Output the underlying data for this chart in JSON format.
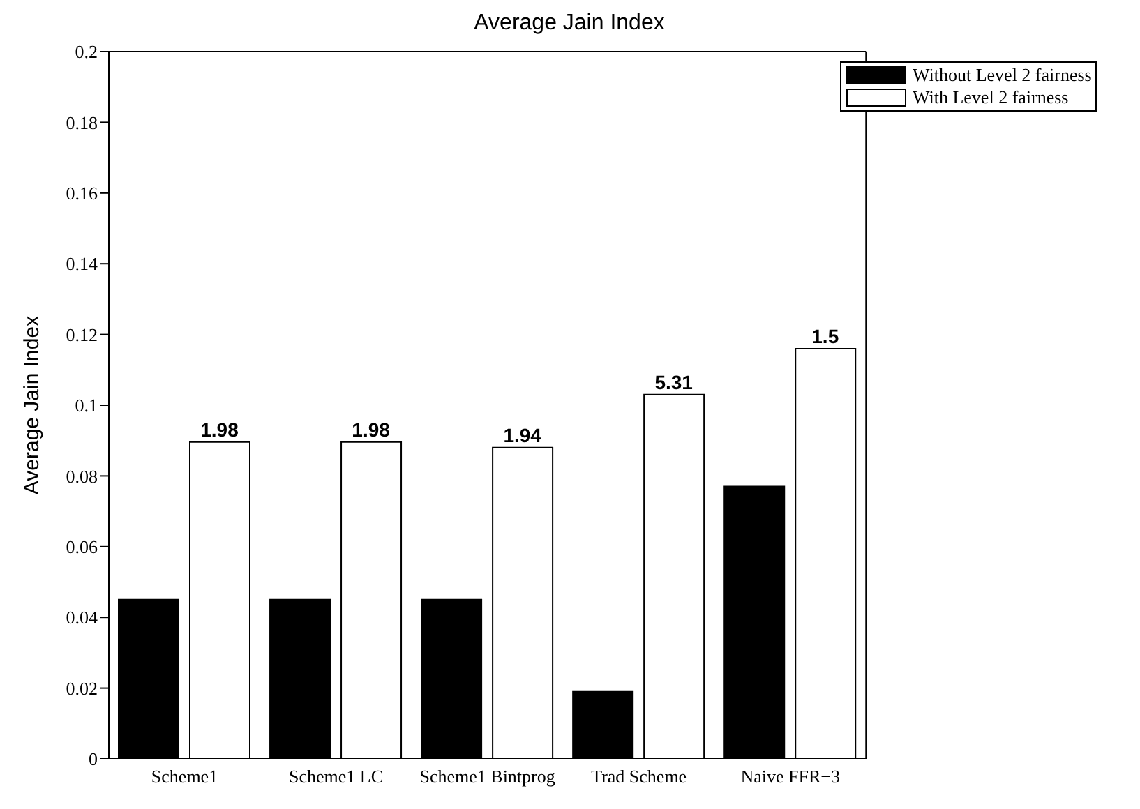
{
  "chart_data": {
    "type": "bar",
    "title": "Average Jain Index",
    "ylabel": "Average Jain Index",
    "categories": [
      "Scheme1",
      "Scheme1 LC",
      "Scheme1 Bintprog",
      "Trad Scheme",
      "Naive FFR−3"
    ],
    "series": [
      {
        "name": "Without Level 2 fairness",
        "color": "#000000",
        "values": [
          0.045,
          0.045,
          0.045,
          0.019,
          0.077
        ]
      },
      {
        "name": "With Level 2 fairness",
        "color": "#ffffff",
        "values": [
          0.0896,
          0.0896,
          0.088,
          0.103,
          0.116
        ]
      }
    ],
    "annotations": [
      {
        "text": "1.98",
        "x": "Scheme1",
        "y": 0.0896
      },
      {
        "text": "1.98",
        "x": "Scheme1 LC",
        "y": 0.0896
      },
      {
        "text": "1.94",
        "x": "Scheme1 Bintprog",
        "y": 0.088
      },
      {
        "text": "5.31",
        "x": "Trad Scheme",
        "y": 0.103
      },
      {
        "text": "1.5",
        "x": "Naive FFR−3",
        "y": 0.116
      }
    ],
    "ylim": [
      0,
      0.2
    ],
    "yticks": [
      0,
      0.02,
      0.04,
      0.06,
      0.08,
      0.1,
      0.12,
      0.14,
      0.16,
      0.18,
      0.2
    ],
    "legend": "top right"
  }
}
